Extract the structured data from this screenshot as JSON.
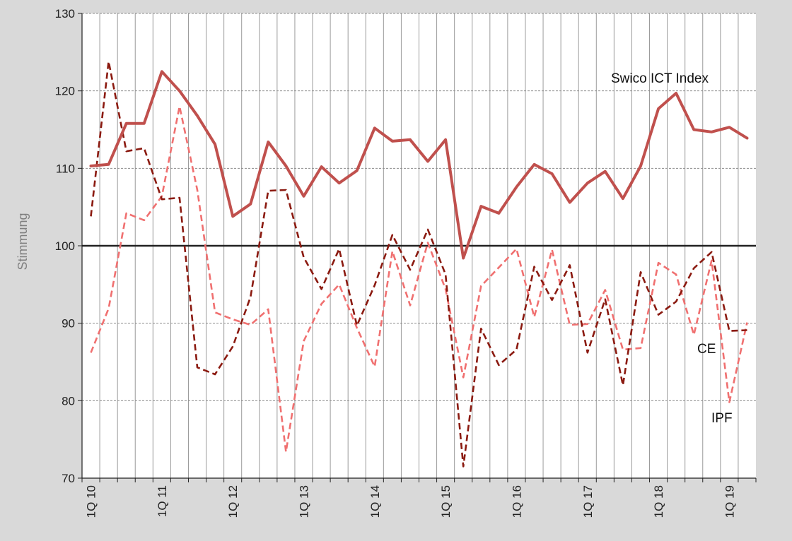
{
  "chart_data": {
    "type": "line",
    "title": "",
    "xlabel": "",
    "ylabel": "Stimmung",
    "ylim": [
      70,
      130
    ],
    "yticks": [
      70,
      80,
      90,
      100,
      110,
      120,
      130
    ],
    "reference_line": 100,
    "grid": true,
    "x": [
      "1Q 10",
      "2Q 10",
      "3Q 10",
      "4Q 10",
      "1Q 11",
      "2Q 11",
      "3Q 11",
      "4Q 11",
      "1Q 12",
      "2Q 12",
      "3Q 12",
      "4Q 12",
      "1Q 13",
      "2Q 13",
      "3Q 13",
      "4Q 13",
      "1Q 14",
      "2Q 14",
      "3Q 14",
      "4Q 14",
      "1Q 15",
      "2Q 15",
      "3Q 15",
      "4Q 15",
      "1Q 16",
      "2Q 16",
      "3Q 16",
      "4Q 16",
      "1Q 17",
      "2Q 17",
      "3Q 17",
      "4Q 17",
      "1Q 18",
      "2Q 18",
      "3Q 18",
      "4Q 18",
      "1Q 19",
      "2Q 19"
    ],
    "xtick_labels": [
      "1Q 10",
      "1Q 11",
      "1Q 12",
      "1Q 13",
      "1Q 14",
      "1Q 15",
      "1Q 16",
      "1Q 17",
      "1Q 18",
      "1Q 19"
    ],
    "series": [
      {
        "name": "Swico ICT Index",
        "color": "#c0504d",
        "style": "solid",
        "values": [
          110.3,
          110.5,
          115.8,
          115.8,
          122.5,
          120.0,
          116.8,
          113.1,
          103.8,
          105.4,
          113.4,
          110.3,
          106.4,
          110.2,
          108.1,
          109.7,
          115.2,
          113.5,
          113.7,
          110.9,
          113.7,
          98.4,
          105.1,
          104.2,
          107.6,
          110.5,
          109.3,
          105.6,
          108.1,
          109.6,
          106.1,
          110.3,
          117.7,
          119.7,
          115.0,
          114.7,
          115.3,
          113.9
        ]
      },
      {
        "name": "CE",
        "color": "#8b1a10",
        "style": "dashed",
        "values": [
          103.8,
          123.8,
          112.2,
          112.6,
          106.0,
          106.2,
          84.3,
          83.4,
          87.0,
          93.4,
          107.1,
          107.2,
          98.5,
          94.4,
          99.6,
          89.7,
          94.9,
          101.4,
          96.9,
          102.1,
          96.3,
          71.5,
          89.3,
          84.6,
          86.6,
          97.3,
          93.0,
          97.5,
          86.2,
          93.1,
          82.0,
          96.6,
          91.1,
          92.8,
          97.1,
          99.2,
          89.0,
          89.1
        ]
      },
      {
        "name": "IPF",
        "color": "#f07070",
        "style": "dashed",
        "values": [
          86.2,
          91.9,
          104.2,
          103.3,
          106.4,
          118.0,
          107.2,
          91.4,
          90.5,
          89.8,
          91.8,
          73.4,
          87.7,
          92.5,
          95.0,
          89.4,
          84.4,
          99.3,
          92.3,
          100.4,
          94.4,
          83.0,
          94.8,
          97.2,
          99.6,
          90.8,
          99.5,
          89.8,
          89.9,
          94.3,
          86.6,
          86.8,
          97.8,
          96.3,
          88.5,
          98.1,
          79.8,
          90.1
        ]
      }
    ],
    "annotations": [
      "Swico ICT Index",
      "CE",
      "IPF"
    ]
  }
}
